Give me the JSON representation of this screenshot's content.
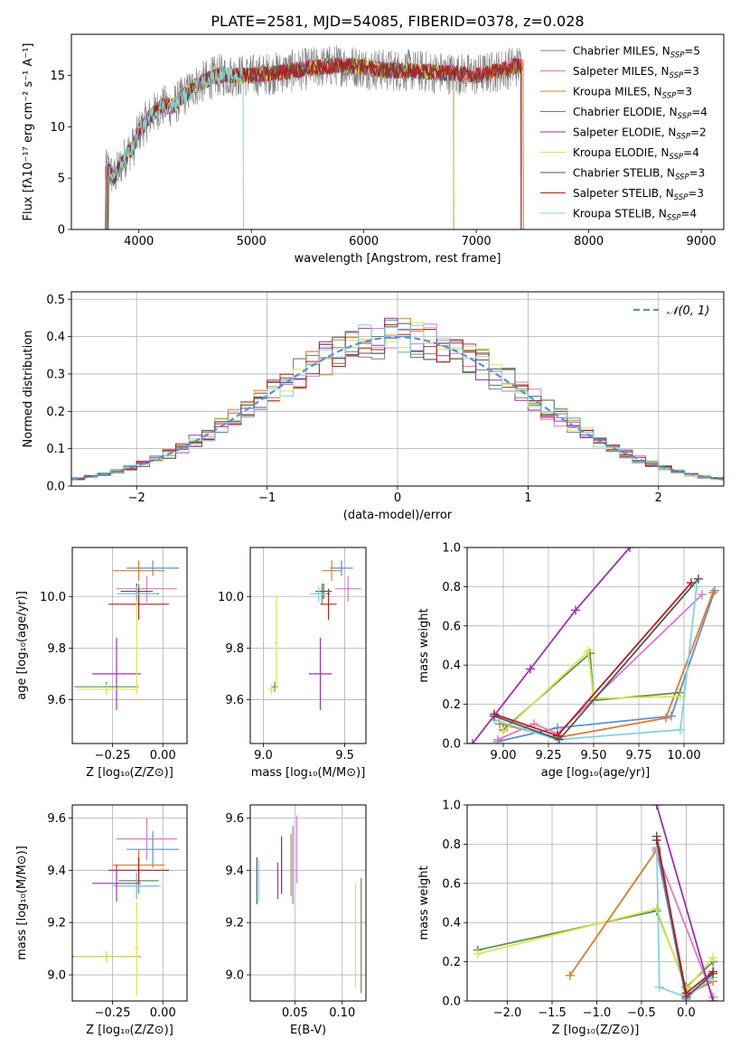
{
  "figure": {
    "title": "PLATE=2581, MJD=54085, FIBERID=0378, z=0.028"
  },
  "series_styles": [
    {
      "name": "Chabrier MILES",
      "nssp": "5",
      "color": "#7f7f7f"
    },
    {
      "name": "Salpeter MILES",
      "nssp": "3",
      "color": "#e377c2"
    },
    {
      "name": "Kroupa MILES",
      "nssp": "3",
      "color": "#e07b2a"
    },
    {
      "name": "Chabrier ELODIE",
      "nssp": "4",
      "color": "#5c8d5c"
    },
    {
      "name": "Salpeter ELODIE",
      "nssp": "2",
      "color": "#9b30b0"
    },
    {
      "name": "Kroupa ELODIE",
      "nssp": "4",
      "color": "#d9e84a"
    },
    {
      "name": "Chabrier STELIB",
      "nssp": "3",
      "color": "#555555"
    },
    {
      "name": "Salpeter STELIB",
      "nssp": "3",
      "color": "#b41e1e"
    },
    {
      "name": "Kroupa STELIB",
      "nssp": "4",
      "color": "#7fd6dc"
    }
  ],
  "chart_data": [
    {
      "id": "spectrum",
      "type": "line",
      "xlabel": "wavelength [Angstrom, rest frame]",
      "ylabel": "Flux [fλ10⁻¹⁷ erg cm⁻² s⁻¹ A⁻¹]",
      "xlim": [
        3400,
        9200
      ],
      "ylim": [
        0,
        19
      ],
      "xticks": [
        4000,
        5000,
        6000,
        7000,
        8000,
        9000
      ],
      "yticks": [
        0,
        5,
        10,
        15
      ],
      "grid": false,
      "legend": "right",
      "observed_continuum": {
        "x": [
          3700,
          3720,
          3780,
          3850,
          3900,
          3950,
          4000,
          4100,
          4200,
          4300,
          4400,
          4500,
          4600,
          4700,
          4800,
          4900,
          5000,
          5200,
          5400,
          5600,
          5800,
          6000,
          6200,
          6400,
          6600,
          6800,
          7000,
          7200,
          7400
        ],
        "y": [
          5.5,
          6.0,
          5.0,
          6.5,
          7.5,
          8.0,
          9.5,
          11.0,
          12.0,
          12.0,
          13.0,
          14.0,
          14.5,
          15.0,
          15.0,
          15.0,
          15.0,
          15.2,
          15.5,
          15.8,
          16.0,
          15.8,
          15.5,
          15.5,
          15.3,
          15.2,
          15.0,
          15.5,
          16.0
        ]
      },
      "model_endpoints": {
        "Chabrier MILES": 7400,
        "Salpeter MILES": 7400,
        "Kroupa MILES": 7420,
        "Chabrier ELODIE": 6800,
        "Salpeter ELODIE": 6800,
        "Kroupa ELODIE": 6800,
        "Chabrier STELIB": 7400,
        "Salpeter STELIB": 7400,
        "Kroupa STELIB": 4930
      }
    },
    {
      "id": "residuals",
      "type": "bar",
      "xlabel": "(data-model)/error",
      "ylabel": "Normed distribution",
      "xlim": [
        -2.5,
        2.5
      ],
      "ylim": [
        0,
        0.52
      ],
      "xticks": [
        -2,
        -1,
        0,
        1,
        2
      ],
      "yticks": [
        0.0,
        0.1,
        0.2,
        0.3,
        0.4,
        0.5
      ],
      "grid": true,
      "legend": "top-right",
      "reference": {
        "label": "𝒩(0, 1)",
        "mean": 0,
        "sigma": 1,
        "color": "#5b8fd6"
      },
      "bin_width": 0.1
    },
    {
      "id": "age-vs-Z",
      "type": "scatter",
      "xlabel": "Z [log₁₀(Z/Z⊙)]",
      "ylabel": "age  [log₁₀(age/yr)]",
      "xlim": [
        -0.45,
        0.12
      ],
      "ylim": [
        9.43,
        10.19
      ],
      "xticks": [
        -0.25,
        0.0
      ],
      "yticks": [
        9.6,
        9.8,
        10.0
      ],
      "grid": true,
      "points": [
        {
          "x": -0.05,
          "y": 10.11,
          "xerr": 0.13,
          "yerr": 0.03,
          "color": "#5b8fd6"
        },
        {
          "x": -0.08,
          "y": 10.03,
          "xerr": 0.15,
          "yerr": 0.05,
          "color": "#e377c2"
        },
        {
          "x": -0.12,
          "y": 10.1,
          "xerr": 0.13,
          "yerr": 0.04,
          "color": "#e07b2a"
        },
        {
          "x": -0.12,
          "y": 10.01,
          "xerr": 0.1,
          "yerr": 0.04,
          "color": "#5c8d5c"
        },
        {
          "x": -0.12,
          "y": 9.97,
          "xerr": 0.15,
          "yerr": 0.06,
          "color": "#b41e1e"
        },
        {
          "x": -0.13,
          "y": 10.02,
          "xerr": 0.08,
          "yerr": 0.03,
          "color": "#555555"
        },
        {
          "x": -0.13,
          "y": 10.01,
          "xerr": 0.1,
          "yerr": 0.03,
          "color": "#7fd6dc"
        },
        {
          "x": -0.23,
          "y": 9.7,
          "xerr": 0.12,
          "yerr": 0.14,
          "color": "#9b30b0"
        },
        {
          "x": -0.28,
          "y": 9.65,
          "xerr": 0.16,
          "yerr": 0.02,
          "color": "#5c8d5c"
        },
        {
          "x": -0.28,
          "y": 9.64,
          "xerr": 0.15,
          "yerr": 0.02,
          "color": "#d9e84a"
        },
        {
          "x": -0.13,
          "y": 9.8,
          "xerr": 0.01,
          "yerr": 0.18,
          "color": "#d9e84a"
        }
      ]
    },
    {
      "id": "age-vs-mass",
      "type": "scatter",
      "xlabel": "mass [log₁₀(M/M⊙)]",
      "ylabel": "",
      "xlim": [
        8.92,
        9.63
      ],
      "ylim": [
        9.43,
        10.19
      ],
      "xticks": [
        9.0,
        9.5
      ],
      "yticks": [
        9.6,
        9.8,
        10.0
      ],
      "grid": true,
      "points": [
        {
          "x": 9.48,
          "y": 10.11,
          "xerr": 0.07,
          "yerr": 0.03,
          "color": "#5b8fd6"
        },
        {
          "x": 9.52,
          "y": 10.03,
          "xerr": 0.08,
          "yerr": 0.05,
          "color": "#e377c2"
        },
        {
          "x": 9.42,
          "y": 10.1,
          "xerr": 0.06,
          "yerr": 0.04,
          "color": "#e07b2a"
        },
        {
          "x": 9.36,
          "y": 10.01,
          "xerr": 0.05,
          "yerr": 0.04,
          "color": "#5c8d5c"
        },
        {
          "x": 9.4,
          "y": 9.97,
          "xerr": 0.05,
          "yerr": 0.06,
          "color": "#b41e1e"
        },
        {
          "x": 9.37,
          "y": 10.02,
          "xerr": 0.05,
          "yerr": 0.03,
          "color": "#555555"
        },
        {
          "x": 9.34,
          "y": 10.01,
          "xerr": 0.05,
          "yerr": 0.03,
          "color": "#7fd6dc"
        },
        {
          "x": 9.35,
          "y": 9.7,
          "xerr": 0.07,
          "yerr": 0.14,
          "color": "#9b30b0"
        },
        {
          "x": 9.07,
          "y": 9.65,
          "xerr": 0.02,
          "yerr": 0.02,
          "color": "#5c8d5c"
        },
        {
          "x": 9.05,
          "y": 9.64,
          "xerr": 0.02,
          "yerr": 0.02,
          "color": "#d9e84a"
        },
        {
          "x": 9.08,
          "y": 9.82,
          "xerr": 0.01,
          "yerr": 0.18,
          "color": "#d9e84a"
        }
      ]
    },
    {
      "id": "weight-vs-age",
      "type": "line",
      "xlabel": "age  [log₁₀(age/yr)]",
      "ylabel": "mass weight",
      "xlim": [
        8.8,
        10.22
      ],
      "ylim": [
        0,
        1.0
      ],
      "xticks": [
        9.0,
        9.25,
        9.5,
        9.75,
        10.0
      ],
      "yticks": [
        0.0,
        0.2,
        0.4,
        0.6,
        0.8,
        1.0
      ],
      "grid": true,
      "series": [
        {
          "color": "#5b8fd6",
          "x": [
            8.97,
            9.3,
            9.93,
            10.17
          ],
          "y": [
            0.01,
            0.08,
            0.14,
            0.78
          ]
        },
        {
          "color": "#e07b2a",
          "x": [
            8.98,
            9.3,
            9.9,
            10.16
          ],
          "y": [
            0.1,
            0.03,
            0.13,
            0.77
          ]
        },
        {
          "color": "#e377c2",
          "x": [
            8.97,
            9.17,
            9.3,
            10.1
          ],
          "y": [
            0.02,
            0.1,
            0.05,
            0.76
          ]
        },
        {
          "color": "#5c8d5c",
          "x": [
            9.0,
            9.48,
            9.5,
            9.98
          ],
          "y": [
            0.07,
            0.46,
            0.22,
            0.26
          ]
        },
        {
          "color": "#d9e84a",
          "x": [
            9.0,
            9.47,
            9.5,
            9.98
          ],
          "y": [
            0.06,
            0.47,
            0.23,
            0.24
          ]
        },
        {
          "color": "#7fd6dc",
          "x": [
            8.95,
            9.3,
            9.98,
            10.07
          ],
          "y": [
            0.12,
            0.02,
            0.07,
            0.8
          ]
        },
        {
          "color": "#555555",
          "x": [
            8.95,
            9.31,
            10.08
          ],
          "y": [
            0.14,
            0.02,
            0.84
          ]
        },
        {
          "color": "#b41e1e",
          "x": [
            8.95,
            9.3,
            10.04
          ],
          "y": [
            0.15,
            0.04,
            0.82
          ]
        },
        {
          "color": "#9b30b0",
          "x": [
            8.83,
            9.15,
            9.4,
            9.7
          ],
          "y": [
            0.0,
            0.38,
            0.68,
            1.0
          ]
        }
      ]
    },
    {
      "id": "mass-vs-Z",
      "type": "scatter",
      "xlabel": "Z [log₁₀(Z/Z⊙)]",
      "ylabel": "mass [log₁₀(M/M⊙)]",
      "xlim": [
        -0.45,
        0.12
      ],
      "ylim": [
        8.9,
        9.65
      ],
      "xticks": [
        -0.25,
        0.0
      ],
      "yticks": [
        9.0,
        9.2,
        9.4,
        9.6
      ],
      "grid": true,
      "points": [
        {
          "x": -0.05,
          "y": 9.48,
          "xerr": 0.13,
          "yerr": 0.07,
          "color": "#5b8fd6"
        },
        {
          "x": -0.08,
          "y": 9.52,
          "xerr": 0.15,
          "yerr": 0.08,
          "color": "#e377c2"
        },
        {
          "x": -0.12,
          "y": 9.42,
          "xerr": 0.13,
          "yerr": 0.06,
          "color": "#e07b2a"
        },
        {
          "x": -0.12,
          "y": 9.36,
          "xerr": 0.1,
          "yerr": 0.05,
          "color": "#5c8d5c"
        },
        {
          "x": -0.12,
          "y": 9.4,
          "xerr": 0.15,
          "yerr": 0.05,
          "color": "#b41e1e"
        },
        {
          "x": -0.13,
          "y": 9.34,
          "xerr": 0.11,
          "yerr": 0.05,
          "color": "#555555"
        },
        {
          "x": -0.13,
          "y": 9.34,
          "xerr": 0.12,
          "yerr": 0.05,
          "color": "#7fd6dc"
        },
        {
          "x": -0.23,
          "y": 9.35,
          "xerr": 0.12,
          "yerr": 0.07,
          "color": "#9b30b0"
        },
        {
          "x": -0.28,
          "y": 9.07,
          "xerr": 0.17,
          "yerr": 0.02,
          "color": "#5c8d5c"
        },
        {
          "x": -0.28,
          "y": 9.07,
          "xerr": 0.16,
          "yerr": 0.02,
          "color": "#d9e84a"
        },
        {
          "x": -0.13,
          "y": 9.1,
          "xerr": 0.01,
          "yerr": 0.18,
          "color": "#d9e84a"
        }
      ]
    },
    {
      "id": "mass-vs-ebv",
      "type": "scatter",
      "xlabel": "E(B-V)",
      "ylabel": "",
      "xlim": [
        0.003,
        0.125
      ],
      "ylim": [
        8.9,
        9.65
      ],
      "xticks": [
        0.05,
        0.1
      ],
      "yticks": [
        9.0,
        9.2,
        9.4,
        9.6
      ],
      "grid": true,
      "points": [
        {
          "x": 0.052,
          "y": 9.48,
          "yerr": 0.13,
          "color": "#e377c2"
        },
        {
          "x": 0.048,
          "y": 9.42,
          "yerr": 0.15,
          "color": "#5b8fd6"
        },
        {
          "x": 0.046,
          "y": 9.42,
          "yerr": 0.12,
          "color": "#e07b2a"
        },
        {
          "x": 0.036,
          "y": 9.42,
          "yerr": 0.11,
          "color": "#b41e1e"
        },
        {
          "x": 0.01,
          "y": 9.36,
          "yerr": 0.09,
          "color": "#555555"
        },
        {
          "x": 0.012,
          "y": 9.36,
          "yerr": 0.08,
          "color": "#7fd6dc"
        },
        {
          "x": 0.032,
          "y": 9.36,
          "yerr": 0.07,
          "color": "#9b30b0"
        },
        {
          "x": 0.12,
          "y": 9.15,
          "yerr": 0.22,
          "color": "#5c8d5c"
        },
        {
          "x": 0.114,
          "y": 9.15,
          "yerr": 0.2,
          "color": "#d9e84a"
        }
      ]
    },
    {
      "id": "weight-vs-Z",
      "type": "line",
      "xlabel": "Z [log₁₀(Z/Z⊙)]",
      "ylabel": "mass weight",
      "xlim": [
        -2.45,
        0.42
      ],
      "ylim": [
        0,
        1.0
      ],
      "xticks": [
        -2.0,
        -1.5,
        -1.0,
        -0.5,
        0.0
      ],
      "yticks": [
        0.0,
        0.2,
        0.4,
        0.6,
        0.8,
        1.0
      ],
      "grid": true,
      "series": [
        {
          "color": "#5c8d5c",
          "x": [
            -2.33,
            -0.33,
            0.0,
            0.3
          ],
          "y": [
            0.26,
            0.46,
            0.07,
            0.2
          ]
        },
        {
          "color": "#d9e84a",
          "x": [
            -2.33,
            -0.33,
            0.0,
            0.3
          ],
          "y": [
            0.24,
            0.47,
            0.06,
            0.22
          ]
        },
        {
          "color": "#e07b2a",
          "x": [
            -1.3,
            -0.33,
            0.0,
            0.3
          ],
          "y": [
            0.13,
            0.77,
            0.03,
            0.1
          ]
        },
        {
          "color": "#5b8fd6",
          "x": [
            -0.33,
            0.0,
            0.3
          ],
          "y": [
            0.78,
            0.01,
            0.14
          ]
        },
        {
          "color": "#e377c2",
          "x": [
            -0.33,
            0.3
          ],
          "y": [
            0.76,
            0.02
          ]
        },
        {
          "color": "#7fd6dc",
          "x": [
            -0.33,
            -0.3,
            0.0,
            0.3
          ],
          "y": [
            0.8,
            0.07,
            0.02,
            0.12
          ]
        },
        {
          "color": "#555555",
          "x": [
            -0.33,
            0.0,
            0.3
          ],
          "y": [
            0.84,
            0.02,
            0.14
          ]
        },
        {
          "color": "#b41e1e",
          "x": [
            -0.33,
            0.0,
            0.3
          ],
          "y": [
            0.82,
            0.04,
            0.15
          ]
        },
        {
          "color": "#9b30b0",
          "x": [
            -0.33,
            0.3
          ],
          "y": [
            1.0,
            0.0
          ]
        }
      ]
    }
  ]
}
